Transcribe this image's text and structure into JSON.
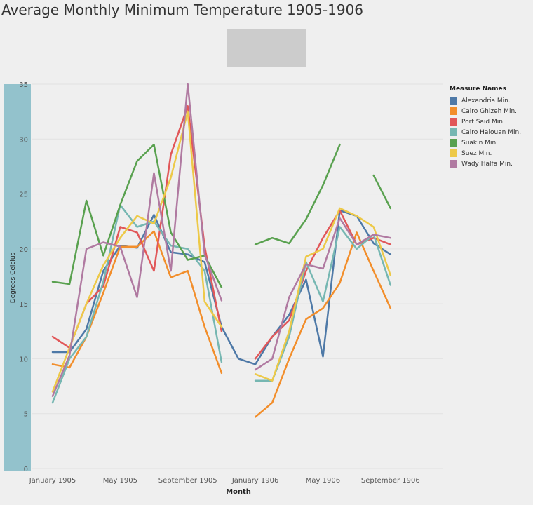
{
  "title": "Average Monthly Minimum Temperature 1905-1906",
  "chart_data": {
    "type": "line",
    "title": "Average Monthly Minimum Temperature 1905-1906",
    "xlabel": "Month",
    "ylabel": "Degrees Celcius",
    "x_ticks": [
      "January 1905",
      "May 1905",
      "September 1905",
      "January 1906",
      "May 1906",
      "September 1906"
    ],
    "x_tick_months": [
      1,
      5,
      9,
      13,
      17,
      21
    ],
    "xlim": [
      1,
      23
    ],
    "ylim": [
      0,
      35
    ],
    "y_ticks": [
      0,
      5,
      10,
      15,
      20,
      25,
      30,
      35
    ],
    "grid": "horizontal",
    "legend_title": "Measure Names",
    "legend_position": "right",
    "series": [
      {
        "name": "Alexandria Min.",
        "color": "#4e79a7",
        "x": [
          1,
          2,
          3,
          4,
          5,
          6,
          7,
          8,
          9,
          10,
          11,
          12,
          13,
          14,
          15,
          16,
          17,
          18,
          19,
          20,
          21,
          22,
          23
        ],
        "values": [
          10.6,
          10.6,
          12.7,
          18.0,
          20.3,
          20.1,
          23.1,
          19.7,
          19.5,
          18.8,
          12.9,
          10.0,
          9.5,
          12.0,
          14.0,
          17.2,
          10.2,
          23.5,
          23.0,
          20.5,
          19.5,
          null,
          null
        ]
      },
      {
        "name": "Cairo Ghizeh Min.",
        "color": "#f28e2b",
        "x": [
          1,
          2,
          3,
          4,
          5,
          6,
          7,
          8,
          9,
          10,
          11,
          12,
          13,
          14,
          15,
          16,
          17,
          18,
          19,
          20,
          21,
          22,
          23
        ],
        "values": [
          9.5,
          9.2,
          12.0,
          16.0,
          20.2,
          20.2,
          21.6,
          17.4,
          18.0,
          12.9,
          8.7,
          null,
          4.7,
          6.0,
          10.0,
          13.6,
          14.6,
          16.9,
          21.5,
          18.0,
          14.6,
          null,
          null
        ]
      },
      {
        "name": "Port Said Min.",
        "color": "#e15759",
        "x": [
          1,
          2,
          3,
          4,
          5,
          6,
          7,
          8,
          9,
          10,
          11,
          12,
          13,
          14,
          15,
          16,
          17,
          18,
          19,
          20,
          21,
          22,
          23
        ],
        "values": [
          12.0,
          11.0,
          15.0,
          16.6,
          22.0,
          21.5,
          18.0,
          28.6,
          33.0,
          20.2,
          12.5,
          null,
          10.0,
          12.0,
          13.5,
          18.0,
          21.0,
          23.5,
          20.4,
          21.0,
          20.4,
          null,
          null
        ]
      },
      {
        "name": "Cairo Halouan Min.",
        "color": "#76b7b2",
        "x": [
          1,
          2,
          3,
          4,
          5,
          6,
          7,
          8,
          9,
          10,
          11,
          12,
          13,
          14,
          15,
          16,
          17,
          18,
          19,
          20,
          21,
          22,
          23
        ],
        "values": [
          6.0,
          10.0,
          12.0,
          17.0,
          24.0,
          22.0,
          22.5,
          20.3,
          20.0,
          18.0,
          9.7,
          null,
          8.0,
          8.0,
          12.0,
          18.8,
          15.2,
          22.0,
          20.0,
          21.3,
          16.7,
          null,
          null
        ]
      },
      {
        "name": "Suakin Min.",
        "color": "#59a14f",
        "x": [
          1,
          2,
          3,
          4,
          5,
          6,
          7,
          8,
          9,
          10,
          11,
          12,
          13,
          14,
          15,
          16,
          17,
          18,
          19,
          20,
          21,
          22,
          23
        ],
        "values": [
          17.0,
          16.8,
          24.4,
          19.4,
          24.0,
          28.0,
          29.5,
          21.5,
          19.0,
          19.4,
          16.5,
          null,
          20.4,
          21.0,
          20.5,
          22.7,
          25.8,
          29.5,
          null,
          26.7,
          23.7,
          null,
          null
        ]
      },
      {
        "name": "Suez Min.",
        "color": "#edc948",
        "x": [
          1,
          2,
          3,
          4,
          5,
          6,
          7,
          8,
          9,
          10,
          11,
          12,
          13,
          14,
          15,
          16,
          17,
          18,
          19,
          20,
          21,
          22,
          23
        ],
        "values": [
          7.0,
          11.0,
          15.0,
          18.5,
          21.0,
          23.0,
          22.3,
          26.5,
          32.5,
          15.2,
          12.9,
          null,
          8.6,
          8.0,
          12.5,
          19.3,
          20.0,
          23.7,
          23.0,
          22.0,
          17.6,
          null,
          null
        ]
      },
      {
        "name": "Wady Halfa Min.",
        "color": "#b07aa1",
        "x": [
          1,
          2,
          3,
          4,
          5,
          6,
          7,
          8,
          9,
          10,
          11,
          12,
          13,
          14,
          15,
          16,
          17,
          18,
          19,
          20,
          21,
          22,
          23
        ],
        "values": [
          6.6,
          10.3,
          20.0,
          20.6,
          20.2,
          15.6,
          26.9,
          18.0,
          35.0,
          19.5,
          15.3,
          null,
          9.0,
          10.0,
          15.6,
          18.6,
          18.2,
          22.8,
          20.4,
          21.3,
          21.0,
          null,
          null
        ]
      }
    ]
  }
}
